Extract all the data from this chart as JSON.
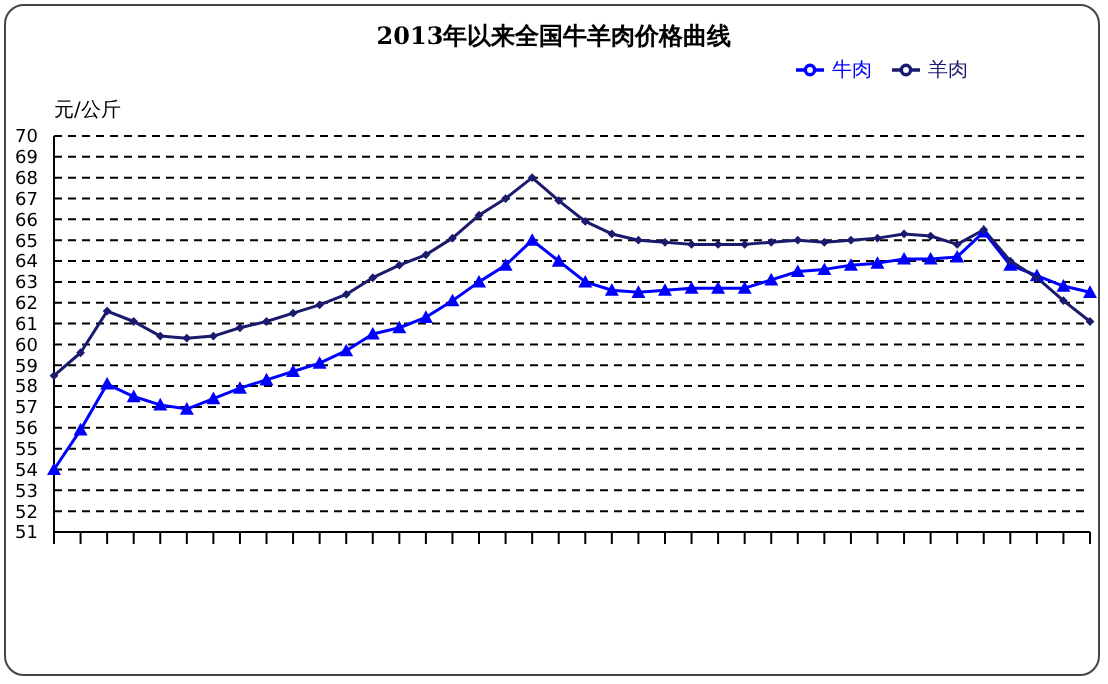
{
  "chart_data": {
    "type": "line",
    "title": "2013年以来全国牛羊肉价格曲线",
    "ylabel": "元/公斤",
    "categories": [
      null,
      null,
      null,
      null,
      null,
      null,
      null,
      null,
      null,
      null,
      null,
      null,
      null,
      null,
      null,
      null,
      null,
      null,
      null,
      null,
      null,
      null,
      null,
      null,
      null,
      null,
      null,
      null,
      null,
      null,
      null,
      null,
      null,
      null,
      null,
      null,
      null,
      null,
      null,
      null
    ],
    "series": [
      {
        "name": "牛肉",
        "color": "#0000ff",
        "marker": "triangle",
        "values": [
          54.0,
          55.9,
          58.1,
          57.5,
          57.1,
          56.9,
          57.4,
          57.9,
          58.3,
          58.7,
          59.1,
          59.7,
          60.5,
          60.8,
          61.3,
          62.1,
          63.0,
          63.8,
          65.0,
          64.0,
          63.0,
          62.6,
          62.5,
          62.6,
          62.7,
          62.7,
          62.7,
          63.1,
          63.5,
          63.6,
          63.8,
          63.9,
          64.1,
          64.1,
          64.2,
          65.4,
          63.8,
          63.3,
          62.8,
          62.5
        ]
      },
      {
        "name": "羊肉",
        "color": "#1a1a6e",
        "marker": "diamond",
        "values": [
          58.5,
          59.6,
          61.6,
          61.1,
          60.4,
          60.3,
          60.4,
          60.8,
          61.1,
          61.5,
          61.9,
          62.4,
          63.2,
          63.8,
          64.3,
          65.1,
          66.2,
          67.0,
          68.0,
          66.9,
          65.9,
          65.3,
          65.0,
          64.9,
          64.8,
          64.8,
          64.8,
          64.9,
          65.0,
          64.9,
          65.0,
          65.1,
          65.3,
          65.2,
          64.8,
          65.5,
          64.0,
          63.2,
          62.1,
          61.1
        ]
      }
    ],
    "ylim": [
      51,
      70
    ],
    "yticks": [
      51,
      52,
      53,
      54,
      55,
      56,
      57,
      58,
      59,
      60,
      61,
      62,
      63,
      64,
      65,
      66,
      67,
      68,
      69,
      70
    ],
    "grid": "y",
    "legend": "top right",
    "line_style": "solid"
  }
}
